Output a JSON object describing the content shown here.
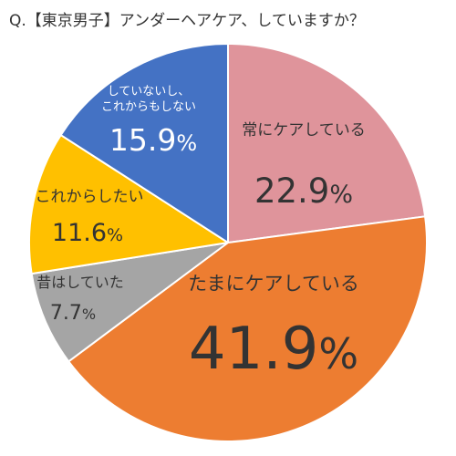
{
  "chart_data": {
    "type": "pie",
    "title": "Q.【東京男子】アンダーヘアケア、していますか？",
    "start_angle_deg": 0,
    "direction": "clockwise",
    "slices": [
      {
        "label": "常にケアしている",
        "value": 22.9,
        "value_label": "22.9%",
        "color": "#DF949B",
        "text_color": "#333333"
      },
      {
        "label": "たまにケアしている",
        "value": 41.9,
        "value_label": "41.9%",
        "color": "#ED7D31",
        "text_color": "#333333"
      },
      {
        "label": "昔はしていた",
        "value": 7.7,
        "value_label": "7.7%",
        "color": "#A5A5A5",
        "text_color": "#333333"
      },
      {
        "label": "これからしたい",
        "value": 11.6,
        "value_label": "11.6%",
        "color": "#FFC000",
        "text_color": "#333333"
      },
      {
        "label": [
          "していないし、",
          "これからもしない"
        ],
        "value": 15.9,
        "value_label": "15.9%",
        "color": "#4472C4",
        "text_color": "#ffffff"
      }
    ]
  }
}
